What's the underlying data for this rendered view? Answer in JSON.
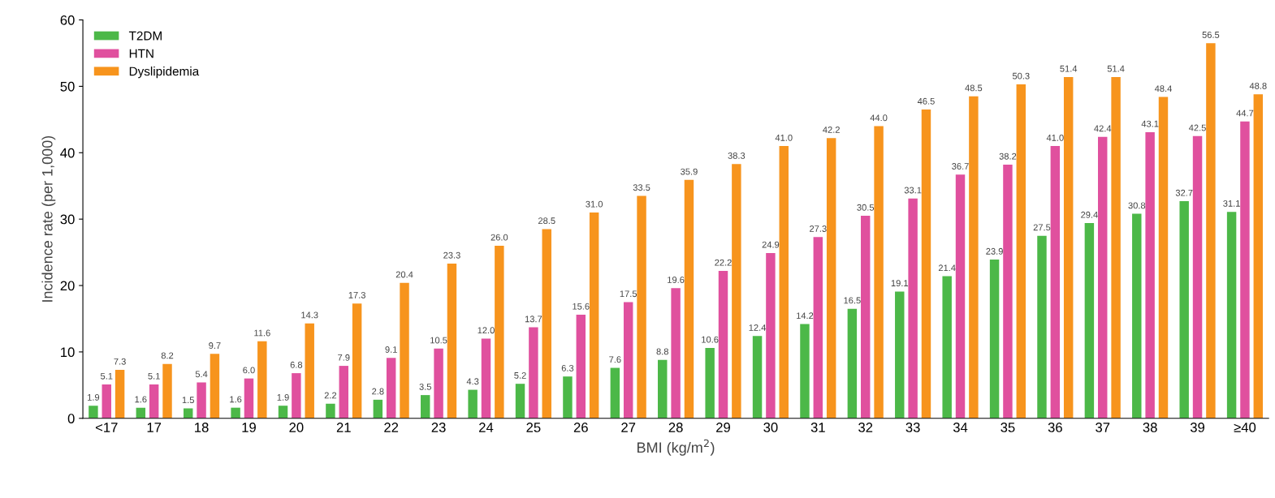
{
  "chart_data": {
    "type": "bar",
    "xlabel": "BMI (kg/m$^{2}$)",
    "ylabel": "Incidence rate (per 1,000)",
    "categories": [
      "<17",
      "17",
      "18",
      "19",
      "20",
      "21",
      "22",
      "23",
      "24",
      "25",
      "26",
      "27",
      "28",
      "29",
      "30",
      "31",
      "32",
      "33",
      "34",
      "35",
      "36",
      "37",
      "38",
      "39",
      "≥40"
    ],
    "series": [
      {
        "name": "T2DM",
        "color": "#4cb848",
        "values": [
          1.9,
          1.6,
          1.5,
          1.6,
          1.9,
          2.2,
          2.8,
          3.5,
          4.3,
          5.2,
          6.3,
          7.6,
          8.8,
          10.6,
          12.4,
          14.2,
          16.5,
          19.1,
          21.4,
          23.9,
          27.5,
          29.4,
          30.8,
          32.7,
          31.1
        ],
        "value_labels": [
          "1.9",
          "1.6",
          "1.5",
          "1.6",
          "1.9",
          "2.2",
          "2.8",
          "3.5",
          "4.3",
          "5.2",
          "6.3",
          "7.6",
          "8.8",
          "10.6",
          "12.4",
          "14.2",
          "16.5",
          "19.1",
          "21.4",
          "23.9",
          "27.5",
          "29.4",
          "30.8",
          "32.7",
          "31.1"
        ]
      },
      {
        "name": "HTN",
        "color": "#e0509e",
        "values": [
          5.1,
          5.1,
          5.4,
          6.0,
          6.8,
          7.9,
          9.1,
          10.5,
          12.0,
          13.7,
          15.6,
          17.5,
          19.6,
          22.2,
          24.9,
          27.3,
          30.5,
          33.1,
          36.7,
          38.2,
          41.0,
          42.4,
          43.1,
          42.5,
          44.7
        ],
        "value_labels": [
          "5.1",
          "5.1",
          "5.4",
          "6.0",
          "6.8",
          "7.9",
          "9.1",
          "10.5",
          "12.0",
          "13.7",
          "15.6",
          "17.5",
          "19.6",
          "22.2",
          "24.9",
          "27.3",
          "30.5",
          "33.1",
          "36.7",
          "38.2",
          "41.0",
          "42.4",
          "43.1",
          "42.5",
          "44.7"
        ]
      },
      {
        "name": "Dyslipidemia",
        "color": "#f7941d",
        "values": [
          7.3,
          8.2,
          9.7,
          11.6,
          14.3,
          17.3,
          20.4,
          23.3,
          26.0,
          28.5,
          31.0,
          33.5,
          35.9,
          38.3,
          41.0,
          42.2,
          44.0,
          46.5,
          48.5,
          50.3,
          51.4,
          51.4,
          48.4,
          56.5,
          48.8
        ],
        "value_labels": [
          "7.3",
          "8.2",
          "9.7",
          "11.6",
          "14.3",
          "17.3",
          "20.4",
          "23.3",
          "26.0",
          "28.5",
          "31.0",
          "33.5",
          "35.9",
          "38.3",
          "41.0",
          "42.2",
          "44.0",
          "46.5",
          "48.5",
          "50.3",
          "51.4",
          "51.4",
          "48.4",
          "56.5",
          "48.8"
        ]
      }
    ],
    "ylim": [
      0,
      60
    ],
    "yticks": [
      0,
      10,
      20,
      30,
      40,
      50,
      60
    ],
    "grid": false,
    "legend": "top left"
  }
}
